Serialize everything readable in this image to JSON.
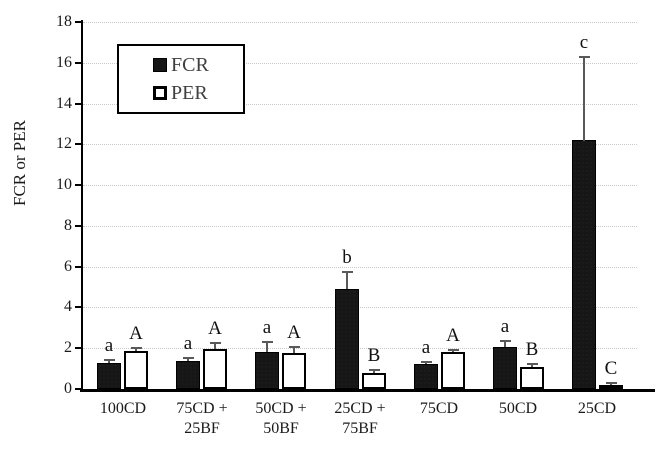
{
  "colors": {
    "fcr_bar": "#161616",
    "per_bar": "#ffffff",
    "bar_border": "#000000",
    "error_bar": "#595959",
    "gridline": "#c9c9c9",
    "axis": "#000000",
    "text": "#1a1a1a",
    "legend_text": "#3f3f3f",
    "background": "#ffffff"
  },
  "legend": {
    "items": [
      {
        "label": "FCR",
        "swatch": "black-filled-square"
      },
      {
        "label": "PER",
        "swatch": "white-outlined-square"
      }
    ]
  },
  "chart_data": {
    "type": "bar",
    "title": "",
    "xlabel": "",
    "ylabel": "FCR or PER",
    "ylim": [
      0,
      18
    ],
    "yticks": [
      0,
      2,
      4,
      6,
      8,
      10,
      12,
      14,
      16,
      18
    ],
    "grid": true,
    "legend_position": "upper-left-inside",
    "categories": [
      "100CD",
      "75CD + 25BF",
      "50CD + 50BF",
      "25CD + 75BF",
      "75CD",
      "50CD",
      "25CD"
    ],
    "category_label_lines": [
      [
        "100CD"
      ],
      [
        "75CD +",
        "25BF"
      ],
      [
        "50CD +",
        "50BF"
      ],
      [
        "25CD +",
        "75BF"
      ],
      [
        "75CD"
      ],
      [
        "50CD"
      ],
      [
        "25CD"
      ]
    ],
    "series": [
      {
        "name": "FCR",
        "values": [
          1.28,
          1.38,
          1.8,
          4.9,
          1.22,
          2.05,
          12.2
        ],
        "errors_up": [
          0.15,
          0.15,
          0.5,
          0.85,
          0.1,
          0.3,
          4.1
        ],
        "sig_letters": [
          "a",
          "a",
          "a",
          "b",
          "a",
          "a",
          "c"
        ]
      },
      {
        "name": "PER",
        "values": [
          1.88,
          1.98,
          1.76,
          0.78,
          1.82,
          1.08,
          0.2
        ],
        "errors_up": [
          0.15,
          0.3,
          0.3,
          0.14,
          0.1,
          0.14,
          0.1
        ],
        "sig_letters": [
          "A",
          "A",
          "A",
          "B",
          "A",
          "B",
          "C"
        ]
      }
    ]
  }
}
